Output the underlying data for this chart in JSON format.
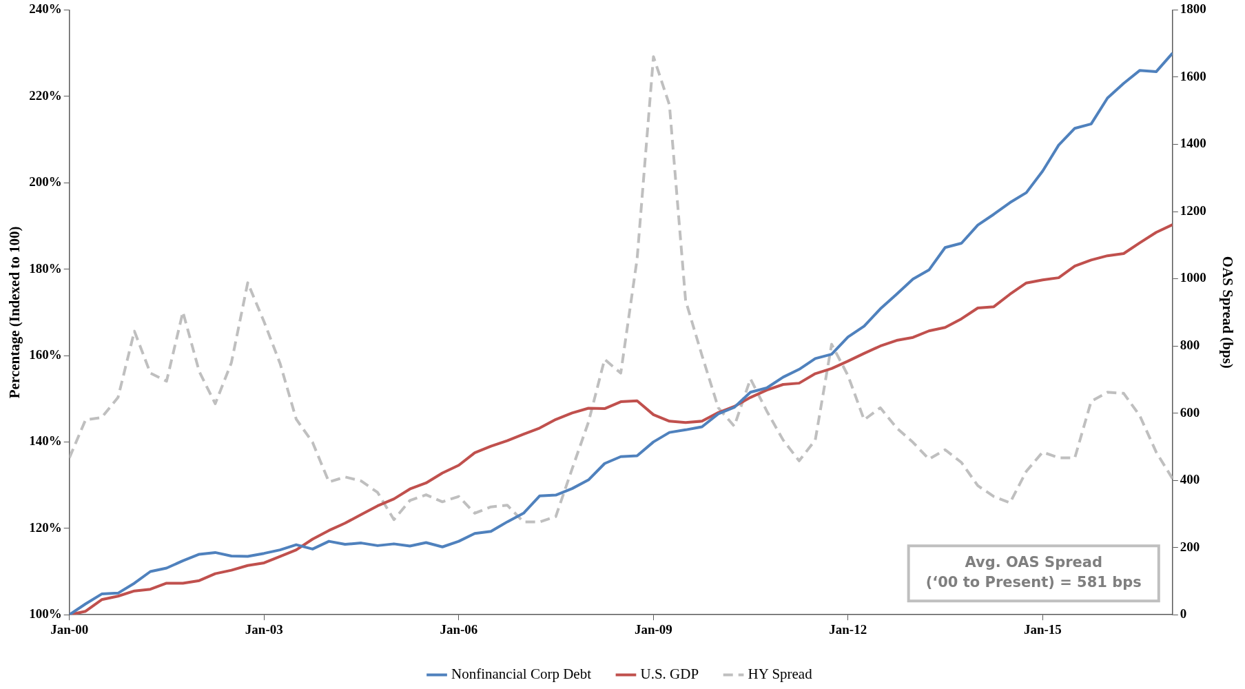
{
  "chart_data": {
    "type": "line",
    "xlabel": null,
    "ylabel": "Percentage (Indexed to 100)",
    "y2label": "OAS Spread (bps)",
    "x": [
      "2000-01",
      "2000-04",
      "2000-07",
      "2000-10",
      "2001-01",
      "2001-04",
      "2001-07",
      "2001-10",
      "2002-01",
      "2002-04",
      "2002-07",
      "2002-10",
      "2003-01",
      "2003-04",
      "2003-07",
      "2003-10",
      "2004-01",
      "2004-04",
      "2004-07",
      "2004-10",
      "2005-01",
      "2005-04",
      "2005-07",
      "2005-10",
      "2006-01",
      "2006-04",
      "2006-07",
      "2006-10",
      "2007-01",
      "2007-04",
      "2007-07",
      "2007-10",
      "2008-01",
      "2008-04",
      "2008-07",
      "2008-10",
      "2009-01",
      "2009-04",
      "2009-07",
      "2009-10",
      "2010-01",
      "2010-04",
      "2010-07",
      "2010-10",
      "2011-01",
      "2011-04",
      "2011-07",
      "2011-10",
      "2012-01",
      "2012-04",
      "2012-07",
      "2012-10",
      "2013-01",
      "2013-04",
      "2013-07",
      "2013-10",
      "2014-01",
      "2014-04",
      "2014-07",
      "2014-10",
      "2015-01",
      "2015-04",
      "2015-07",
      "2015-10",
      "2016-01",
      "2016-04",
      "2016-07",
      "2016-10",
      "2017-01"
    ],
    "series": [
      {
        "name": "Nonfinancial Corp Debt",
        "color": "#4f81bd",
        "line_style": "solid",
        "values": [
          100,
          102.5,
          104.8,
          105,
          107.3,
          110,
          110.8,
          112.5,
          114,
          114.4,
          113.6,
          113.5,
          114.2,
          115,
          116.2,
          115.2,
          117,
          116.3,
          116.6,
          116,
          116.4,
          115.9,
          116.7,
          115.7,
          117,
          118.8,
          119.3,
          121.5,
          123.5,
          127.5,
          127.7,
          129.2,
          131.2,
          135,
          136.6,
          136.8,
          140,
          142.2,
          142.8,
          143.5,
          146.5,
          148,
          151.5,
          152.5,
          155,
          156.8,
          159.3,
          160.3,
          164.3,
          166.8,
          170.8,
          174.2,
          177.7,
          179.8,
          185,
          186,
          190.2,
          192.7,
          195.4,
          197.7,
          202.7,
          208.7,
          212.6,
          213.6,
          219.6,
          223,
          226,
          225.7,
          230
        ]
      },
      {
        "name": "U.S. GDP",
        "color": "#c0504d",
        "line_style": "solid",
        "values": [
          100,
          100.8,
          103.5,
          104.3,
          105.5,
          105.9,
          107.3,
          107.3,
          107.9,
          109.5,
          110.3,
          111.4,
          112,
          113.5,
          115,
          117.5,
          119.5,
          121.2,
          123.2,
          125.2,
          126.8,
          129.1,
          130.5,
          132.8,
          134.6,
          137.5,
          139,
          140.3,
          141.8,
          143.2,
          145.2,
          146.7,
          147.8,
          147.7,
          149.3,
          149.5,
          146.3,
          144.8,
          144.5,
          144.8,
          146.8,
          148.2,
          150.3,
          152,
          153.3,
          153.6,
          155.8,
          157,
          158.7,
          160.5,
          162.2,
          163.5,
          164.2,
          165.7,
          166.5,
          168.5,
          171,
          171.3,
          174.2,
          176.8,
          177.5,
          178,
          180.7,
          182.1,
          183.1,
          183.6,
          186.1,
          188.5,
          190.3
        ]
      },
      {
        "name": "HY Spread",
        "color": "#bfbfbf",
        "line_style": "dashed",
        "axis": "y2",
        "values": [
          467,
          580,
          587,
          647,
          844,
          719,
          695,
          901,
          724,
          628,
          750,
          988,
          872,
          748,
          582,
          513,
          395,
          410,
          398,
          364,
          283,
          340,
          357,
          336,
          352,
          302,
          321,
          326,
          276,
          276,
          292,
          434,
          573,
          760,
          719,
          1059,
          1661,
          1517,
          935,
          772,
          616,
          561,
          702,
          606,
          520,
          458,
          520,
          805,
          712,
          580,
          616,
          556,
          513,
          463,
          491,
          453,
          384,
          352,
          333,
          427,
          484,
          467,
          467,
          635,
          662,
          659,
          592,
          484,
          405
        ]
      }
    ],
    "xlim": [
      "2000-01",
      "2017-01"
    ],
    "xticks": [
      {
        "value": "2000-01",
        "label": "Jan-00"
      },
      {
        "value": "2003-01",
        "label": "Jan-03"
      },
      {
        "value": "2006-01",
        "label": "Jan-06"
      },
      {
        "value": "2009-01",
        "label": "Jan-09"
      },
      {
        "value": "2012-01",
        "label": "Jan-12"
      },
      {
        "value": "2015-01",
        "label": "Jan-15"
      }
    ],
    "ylim": [
      100,
      240
    ],
    "yticks": [
      {
        "value": 100,
        "label": "100%"
      },
      {
        "value": 120,
        "label": "120%"
      },
      {
        "value": 140,
        "label": "140%"
      },
      {
        "value": 160,
        "label": "160%"
      },
      {
        "value": 180,
        "label": "180%"
      },
      {
        "value": 200,
        "label": "200%"
      },
      {
        "value": 220,
        "label": "220%"
      },
      {
        "value": 240,
        "label": "240%"
      }
    ],
    "y2lim": [
      0,
      1800
    ],
    "y2ticks": [
      0,
      200,
      400,
      600,
      800,
      1000,
      1200,
      1400,
      1600,
      1800
    ],
    "annotations": [
      "Avg. OAS Spread\n(‘00 to Present) = 581 bps"
    ],
    "grid": false,
    "legend": "bottom",
    "marker": "none"
  }
}
